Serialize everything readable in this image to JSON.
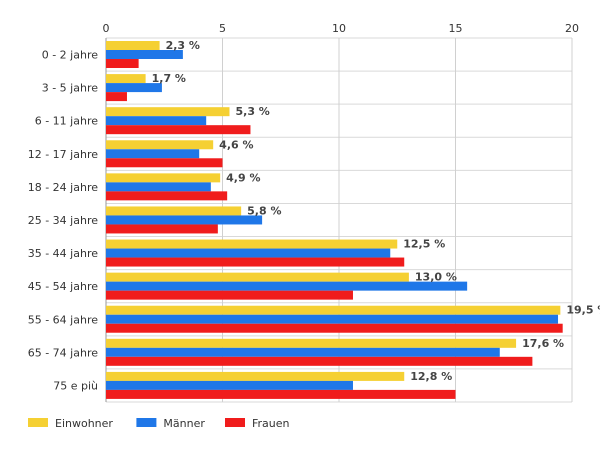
{
  "chart_data": {
    "type": "bar",
    "orientation": "horizontal",
    "title": "",
    "xlabel": "",
    "ylabel": "",
    "xlim": [
      0,
      20
    ],
    "x_ticks": [
      0,
      5,
      10,
      15,
      20
    ],
    "x_tick_labels": [
      "0",
      "5",
      "10",
      "15",
      "20"
    ],
    "grid": true,
    "legend_position": "bottom-left",
    "categories": [
      "0 - 2 jahre",
      "3 - 5 jahre",
      "6 - 11 jahre",
      "12 - 17 jahre",
      "18 - 24 jahre",
      "25 - 34 jahre",
      "35 - 44 jahre",
      "45 - 54 jahre",
      "55 - 64 jahre",
      "65 - 74 jahre",
      "75 e più"
    ],
    "series": [
      {
        "name": "Einwohner",
        "color": "#f5d033",
        "values": [
          2.3,
          1.7,
          5.3,
          4.6,
          4.9,
          5.8,
          12.5,
          13.0,
          19.5,
          17.6,
          12.8
        ],
        "data_labels": [
          "2,3 %",
          "1,7 %",
          "5,3 %",
          "4,6 %",
          "4,9 %",
          "5,8 %",
          "12,5 %",
          "13,0 %",
          "19,5 %",
          "17,6 %",
          "12,8 %"
        ]
      },
      {
        "name": "Männer",
        "color": "#1f77e8",
        "values": [
          3.3,
          2.4,
          4.3,
          4.0,
          4.5,
          6.7,
          12.2,
          15.5,
          19.4,
          16.9,
          10.6
        ]
      },
      {
        "name": "Frauen",
        "color": "#f01c1c",
        "values": [
          1.4,
          0.9,
          6.2,
          5.0,
          5.2,
          4.8,
          12.8,
          10.6,
          19.6,
          18.3,
          15.0
        ]
      }
    ]
  }
}
